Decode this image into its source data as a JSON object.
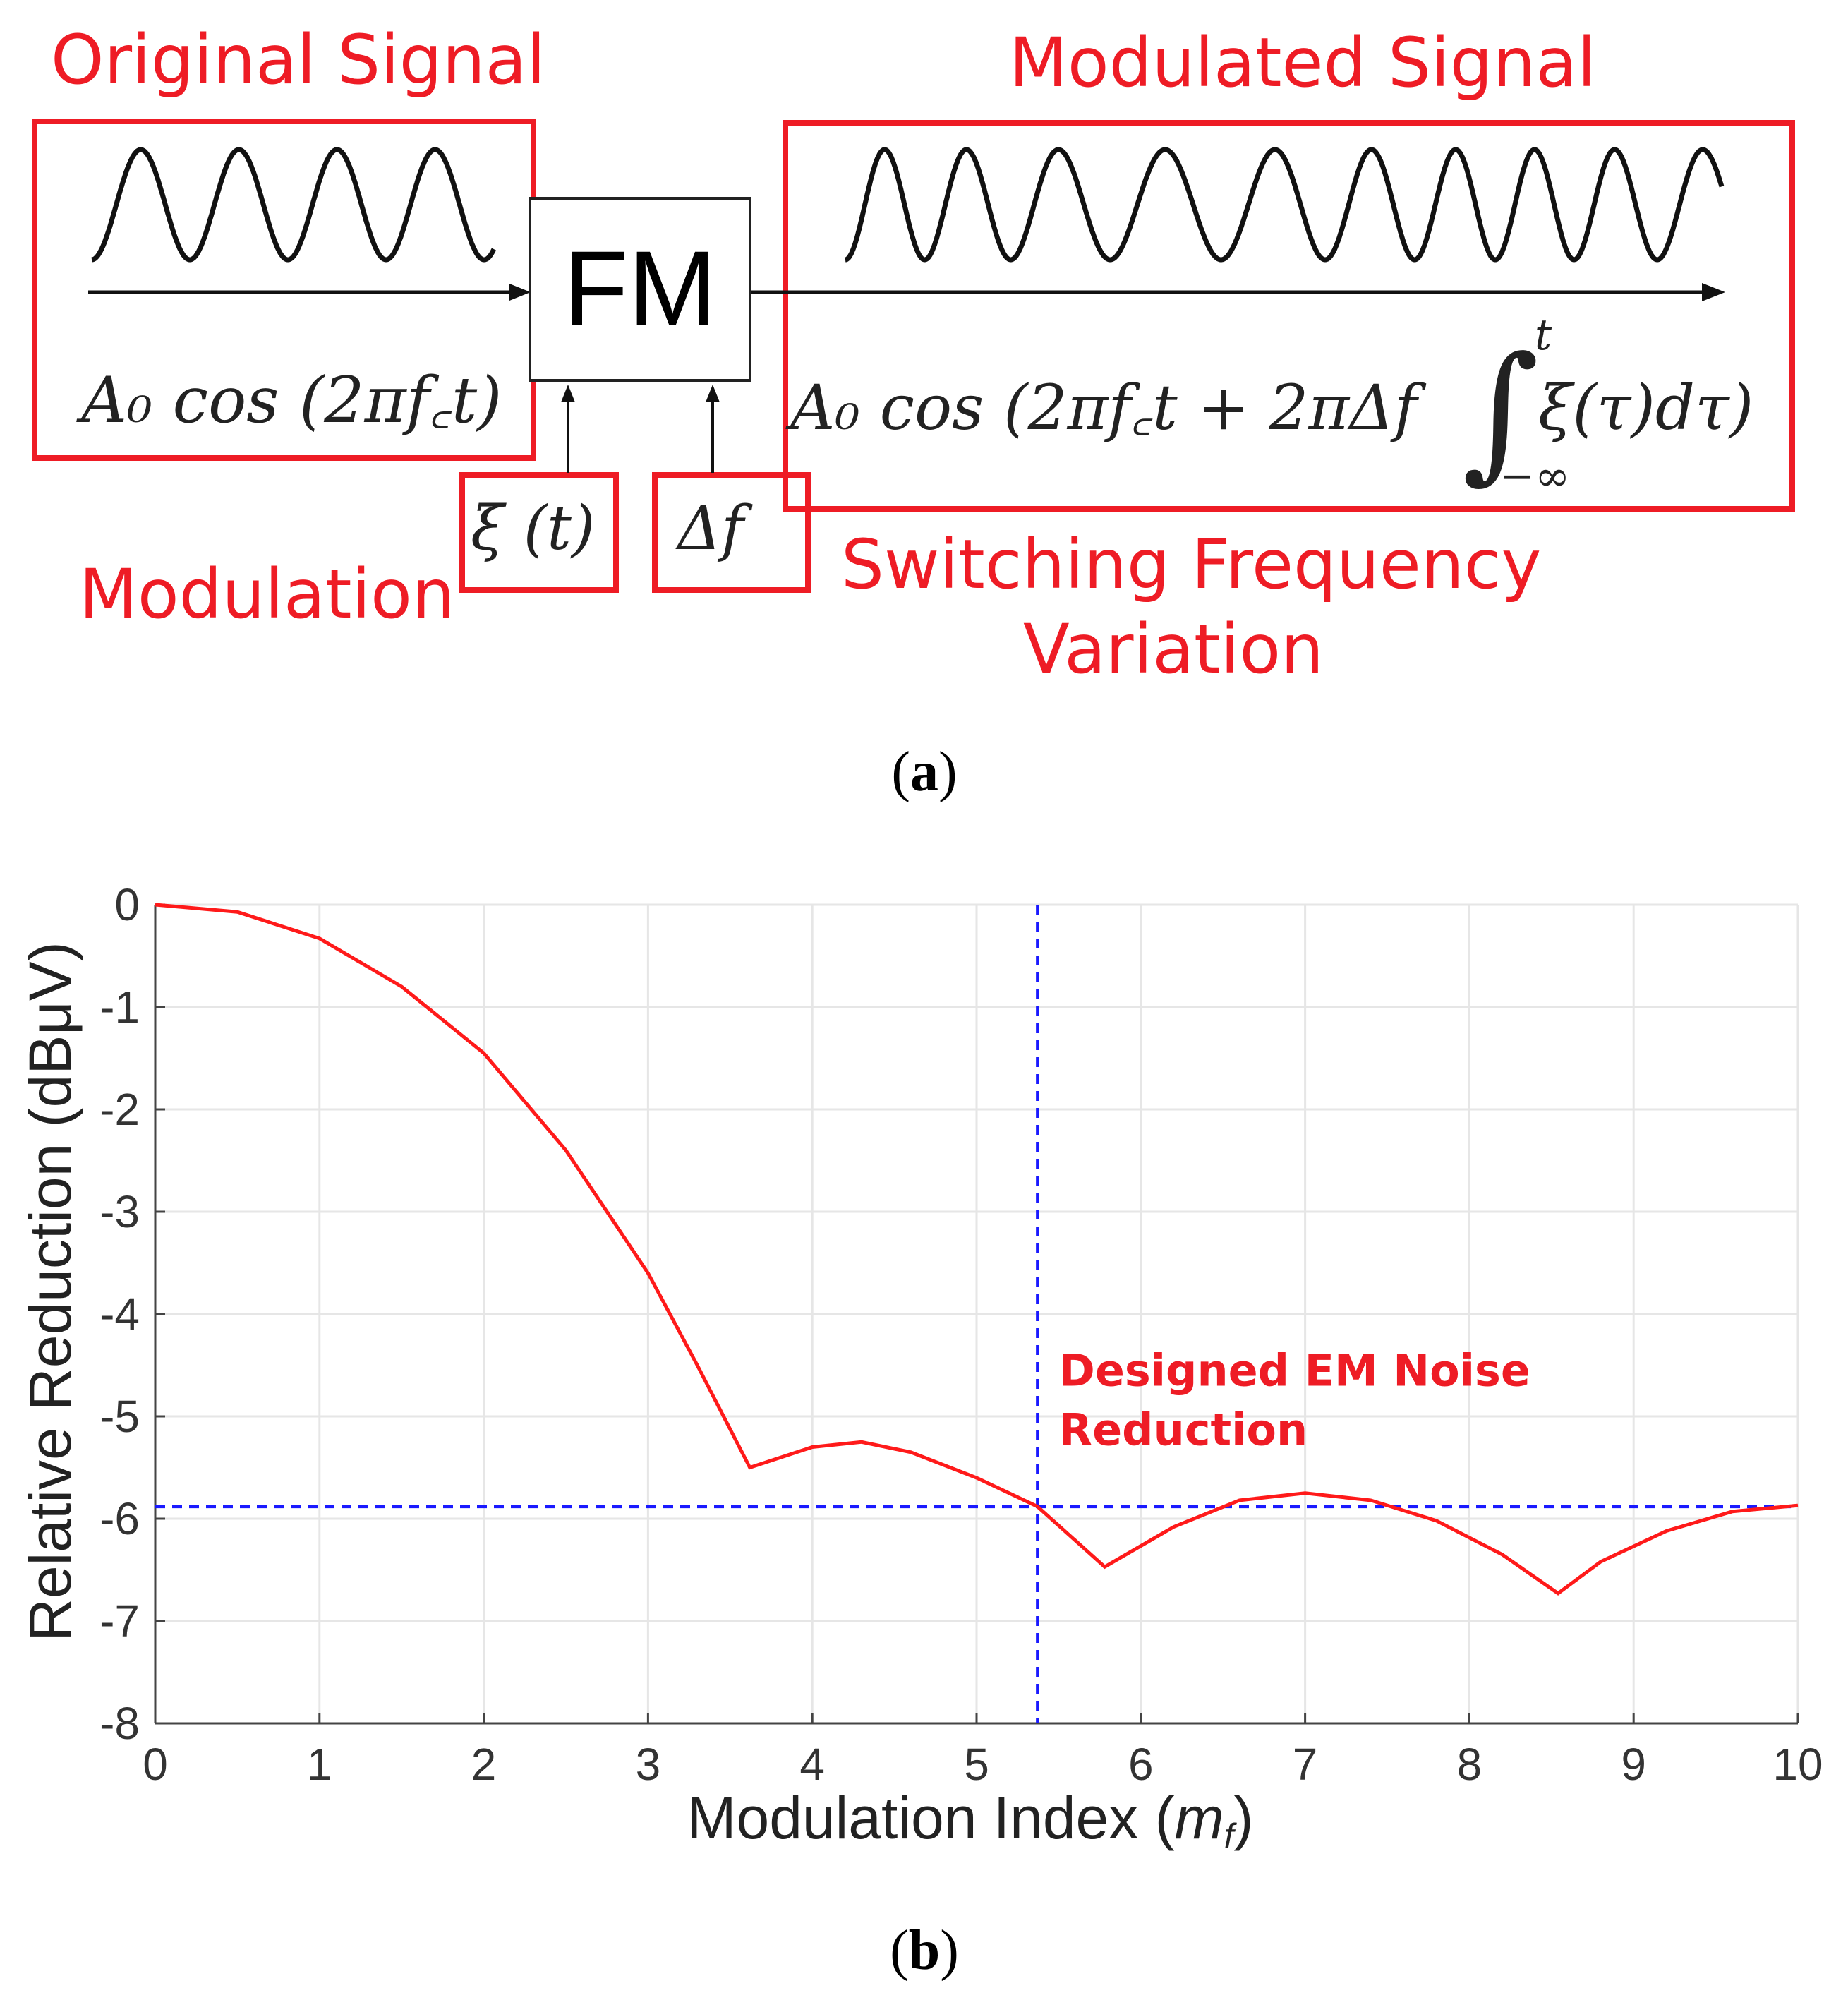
{
  "panel_a": {
    "original_signal_label": "Original Signal",
    "modulated_signal_label": "Modulated Signal",
    "modulation_label": "Modulation",
    "switching_label_line1": "Switching Frequency",
    "switching_label_line2": "Variation",
    "fm_block_label": "FM",
    "input_formula": "A₀ cos (2πf꜀t)",
    "output_formula_main": "A₀ cos (2πf꜀t + 2πΔf",
    "output_formula_integrand": "ξ(τ)dτ)",
    "integral_upper": "t",
    "integral_lower": "−∞",
    "xi_input": "ξ (t)",
    "delta_f_input": "Δf",
    "caption_open": "(",
    "caption_letter": "a",
    "caption_close": ")"
  },
  "panel_b": {
    "caption_open": "(",
    "caption_letter": "b",
    "caption_close": ")"
  },
  "colors": {
    "highlight_red": "#ee1c25",
    "curve_red": "#ff1a1a",
    "reference_blue": "#1a1aff",
    "grid": "#e6e6e6"
  },
  "chart_data": {
    "type": "line",
    "title": "",
    "xlabel": "Modulation Index (m",
    "xlabel_subscript": "f",
    "xlabel_close": ")",
    "ylabel": "Relative Reduction (dBμV)",
    "xlim": [
      0,
      10
    ],
    "ylim": [
      -8,
      0
    ],
    "xticks": [
      0,
      1,
      2,
      3,
      4,
      5,
      6,
      7,
      8,
      9,
      10
    ],
    "yticks": [
      0,
      -1,
      -2,
      -3,
      -4,
      -5,
      -6,
      -7,
      -8
    ],
    "grid": true,
    "series": [
      {
        "name": "Relative Reduction",
        "x": [
          0,
          0.5,
          1.0,
          1.5,
          2.0,
          2.5,
          3.0,
          3.3,
          3.62,
          4.0,
          4.3,
          4.6,
          5.0,
          5.37,
          5.78,
          6.2,
          6.6,
          7.0,
          7.4,
          7.8,
          8.2,
          8.54,
          8.8,
          9.2,
          9.6,
          10.0
        ],
        "y": [
          0,
          -0.07,
          -0.33,
          -0.8,
          -1.45,
          -2.4,
          -3.6,
          -4.5,
          -5.5,
          -5.3,
          -5.25,
          -5.35,
          -5.6,
          -5.88,
          -6.47,
          -6.08,
          -5.82,
          -5.75,
          -5.82,
          -6.02,
          -6.35,
          -6.73,
          -6.42,
          -6.12,
          -5.93,
          -5.87
        ]
      },
      {
        "name": "Designed EM noise reduction level",
        "type": "hline",
        "y": -5.88
      },
      {
        "name": "Design modulation index",
        "type": "vline",
        "x": 5.37
      }
    ],
    "annotations": [
      {
        "text_line1": "Designed EM Noise",
        "text_line2": "Reduction",
        "x": 5.5,
        "y": -4.7
      }
    ]
  }
}
